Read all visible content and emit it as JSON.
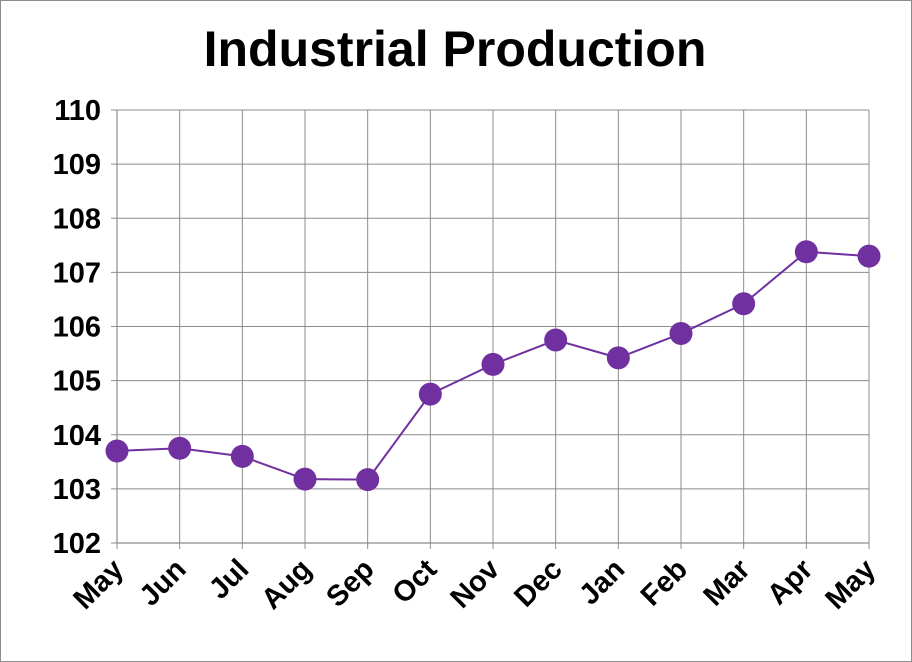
{
  "chart_data": {
    "type": "line",
    "title": "Industrial Production",
    "xlabel": "",
    "ylabel": "",
    "categories": [
      "May",
      "Jun",
      "Jul",
      "Aug",
      "Sep",
      "Oct",
      "Nov",
      "Dec",
      "Jan",
      "Feb",
      "Mar",
      "Apr",
      "May"
    ],
    "series": [
      {
        "values": [
          103.7,
          103.75,
          103.6,
          103.18,
          103.17,
          104.75,
          105.3,
          105.75,
          105.42,
          105.87,
          106.42,
          107.38,
          107.3
        ]
      }
    ],
    "ylim": [
      102,
      110
    ],
    "yticks": [
      102,
      103,
      104,
      105,
      106,
      107,
      108,
      109,
      110
    ],
    "grid": true,
    "legend": "none",
    "colors": {
      "line": "#7030a0",
      "marker": "#7030a0",
      "grid": "#8c8c8c",
      "axis": "#8c8c8c"
    }
  }
}
